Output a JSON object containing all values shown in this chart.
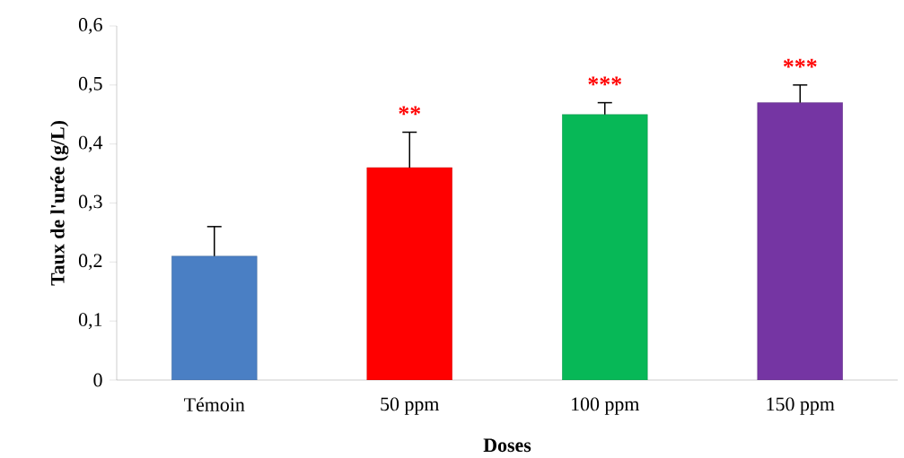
{
  "chart_data": {
    "type": "bar",
    "xlabel": "Doses",
    "ylabel": "Taux de l'urée (g/L)",
    "categories": [
      "Témoin",
      "50 ppm",
      "100 ppm",
      "150 ppm"
    ],
    "values": [
      0.21,
      0.36,
      0.45,
      0.47
    ],
    "errors": [
      [
        0.21,
        0.26
      ],
      [
        0.36,
        0.42
      ],
      [
        0.45,
        0.47
      ],
      [
        0.47,
        0.5
      ]
    ],
    "colors": [
      "#4a7fc4",
      "#ff0000",
      "#07b857",
      "#7535a3"
    ],
    "ylim": [
      0,
      0.6
    ],
    "yticks": [
      0,
      {
        "value": 0.1,
        "label": "0,1"
      },
      {
        "value": 0.2,
        "label": "0,2"
      },
      {
        "value": 0.3,
        "label": "0,3"
      },
      {
        "value": 0.4,
        "label": "0,4"
      },
      {
        "value": 0.5,
        "label": "0,5"
      },
      {
        "value": 0.6,
        "label": "0,6"
      }
    ],
    "annotations": [
      {
        "text": "**",
        "x": "50 ppm",
        "y": 0.42
      },
      {
        "text": "***",
        "x": "100 ppm",
        "y": 0.47
      },
      {
        "text": "***",
        "x": "150 ppm",
        "y": 0.5
      }
    ]
  }
}
